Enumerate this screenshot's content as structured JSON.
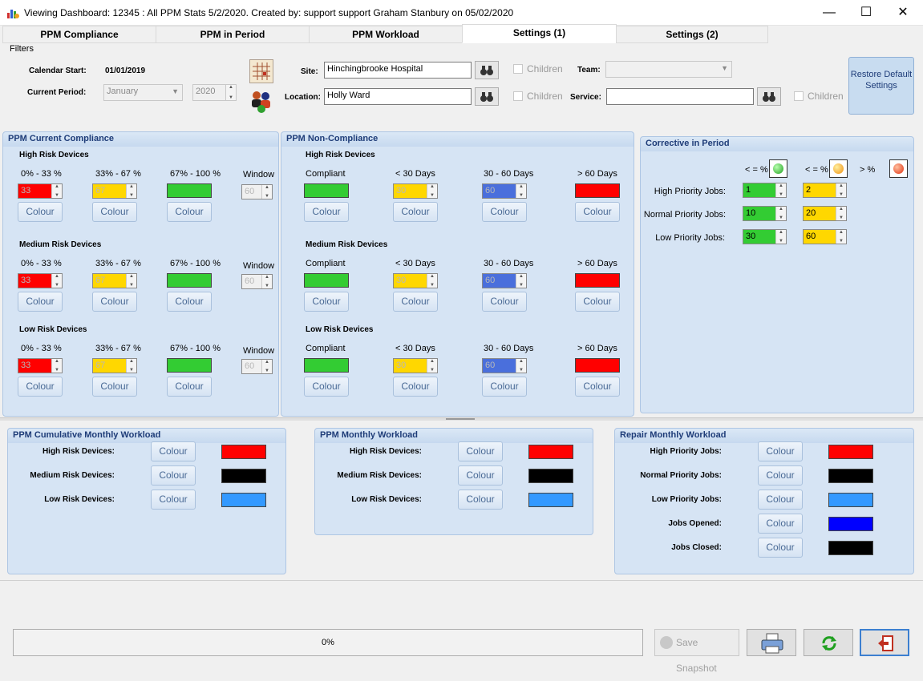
{
  "window": {
    "title": "Viewing Dashboard: 12345 : All PPM Stats 5/2/2020. Created by: support support Graham Stanbury on 05/02/2020",
    "minimize": "—",
    "maximize": "☐",
    "close": "✕"
  },
  "tabs": [
    {
      "label": "PPM Compliance"
    },
    {
      "label": "PPM in Period"
    },
    {
      "label": "PPM Workload"
    },
    {
      "label": "Settings (1)"
    },
    {
      "label": "Settings (2)"
    }
  ],
  "filters": {
    "group_label": "Filters",
    "calendar_start_label": "Calendar Start:",
    "calendar_start_value": "01/01/2019",
    "current_period_label": "Current Period:",
    "period_month": "January",
    "period_year": "2020",
    "site_label": "Site:",
    "site_value": "Hinchingbrooke Hospital",
    "location_label": "Location:",
    "location_value": "Holly Ward",
    "children_label": "Children",
    "team_label": "Team:",
    "service_label": "Service:",
    "restore_button": "Restore Default Settings"
  },
  "colour_label": "Colour",
  "compliance": {
    "title": "PPM Current Compliance",
    "ranges": [
      "0% - 33 %",
      "33% - 67 %",
      "67% - 100 %"
    ],
    "window_label": "Window",
    "groups": [
      {
        "label": "High Risk Devices",
        "low": "33",
        "mid": "67",
        "window": "60"
      },
      {
        "label": "Medium Risk Devices",
        "low": "33",
        "mid": "67",
        "window": "60"
      },
      {
        "label": "Low Risk Devices",
        "low": "33",
        "mid": "67",
        "window": "60"
      }
    ]
  },
  "noncompliance": {
    "title": "PPM Non-Compliance",
    "columns": [
      "Compliant",
      "< 30 Days",
      "30 - 60 Days",
      "> 60 Days"
    ],
    "groups": [
      {
        "label": "High Risk Devices",
        "d30": "30",
        "d60": "60"
      },
      {
        "label": "Medium Risk Devices",
        "d30": "30",
        "d60": "60"
      },
      {
        "label": "Low Risk Devices",
        "d30": "30",
        "d60": "60"
      }
    ]
  },
  "corrective": {
    "title": "Corrective in Period",
    "headers": [
      "< = %",
      "< = %",
      "> %"
    ],
    "rows": [
      {
        "label": "High Priority Jobs:",
        "green": "1",
        "amber": "2"
      },
      {
        "label": "Normal Priority Jobs:",
        "green": "10",
        "amber": "20"
      },
      {
        "label": "Low Priority Jobs:",
        "green": "30",
        "amber": "60"
      }
    ]
  },
  "cumulative": {
    "title": "PPM Cumulative Monthly Workload",
    "rows": [
      {
        "label": "High Risk Devices:",
        "color": "#ff0000"
      },
      {
        "label": "Medium Risk Devices:",
        "color": "#000000"
      },
      {
        "label": "Low Risk Devices:",
        "color": "#3399ff"
      }
    ]
  },
  "monthly": {
    "title": "PPM Monthly Workload",
    "rows": [
      {
        "label": "High Risk Devices:",
        "color": "#ff0000"
      },
      {
        "label": "Medium Risk Devices:",
        "color": "#000000"
      },
      {
        "label": "Low Risk Devices:",
        "color": "#3399ff"
      }
    ]
  },
  "repair": {
    "title": "Repair Monthly Workload",
    "rows": [
      {
        "label": "High Priority Jobs:",
        "color": "#ff0000"
      },
      {
        "label": "Normal Priority Jobs:",
        "color": "#000000"
      },
      {
        "label": "Low Priority Jobs:",
        "color": "#3399ff"
      },
      {
        "label": "Jobs Opened:",
        "color": "#0000ff"
      },
      {
        "label": "Jobs Closed:",
        "color": "#000000"
      }
    ]
  },
  "footer": {
    "progress_text": "0%",
    "progress_value": 0,
    "save_snapshot": "Save Snapshot"
  },
  "colors": {
    "red": "#ff0000",
    "amber": "#ffd700",
    "green": "#33cc33",
    "blue": "#4a6fdc",
    "panel": "#d6e4f4",
    "accent": "#1e3c78"
  },
  "icons": [
    "app-icon",
    "calendar-icon",
    "people-icon",
    "binoculars-icon",
    "green-light-icon",
    "amber-light-icon",
    "red-light-icon",
    "snapshot-icon",
    "print-icon",
    "refresh-icon",
    "exit-icon"
  ]
}
